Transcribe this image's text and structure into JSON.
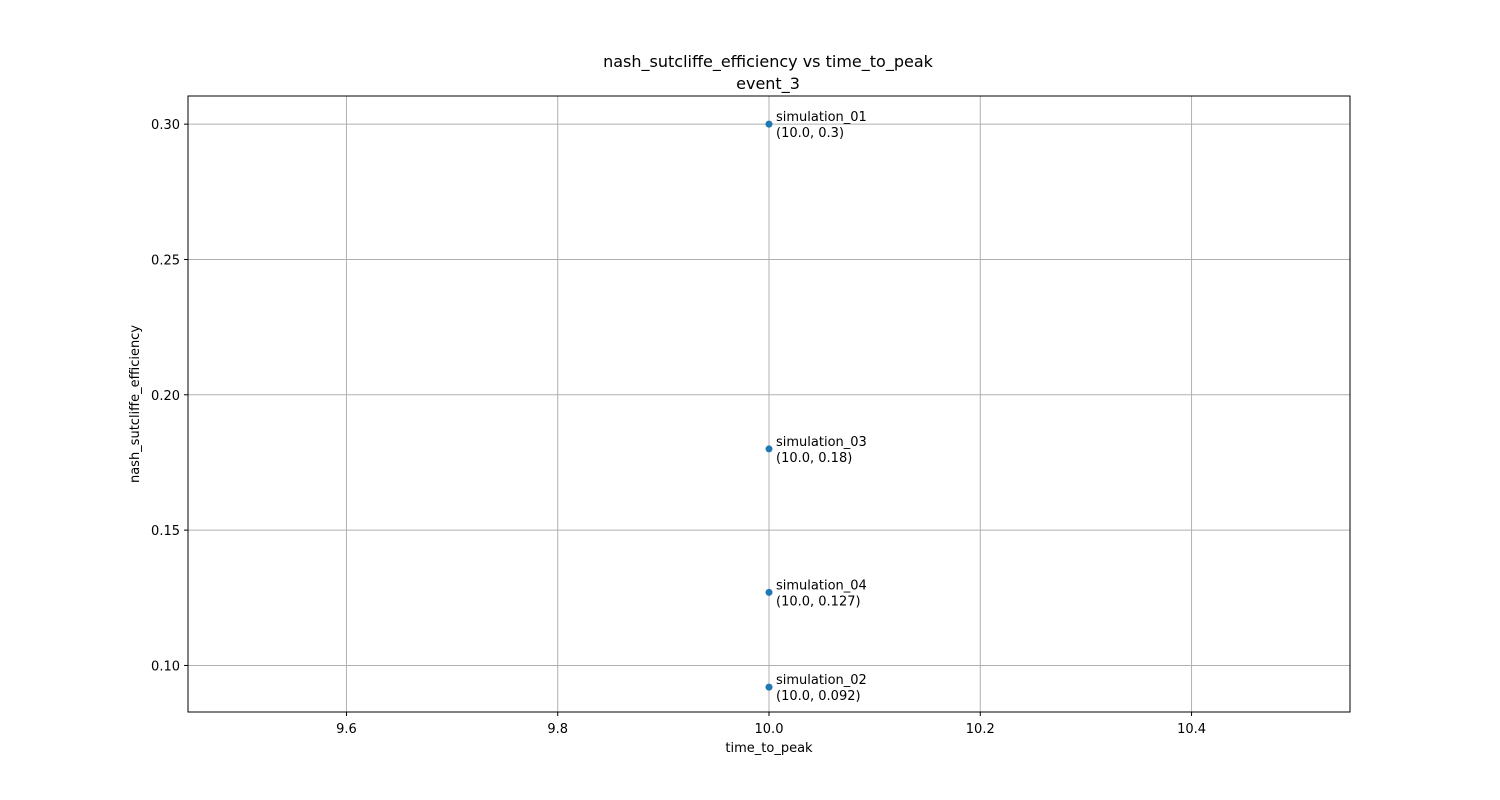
{
  "chart_data": {
    "type": "scatter",
    "title": "nash_sutcliffe_efficiency vs time_to_peak",
    "subtitle": "event_3",
    "xlabel": "time_to_peak",
    "ylabel": "nash_sutcliffe_efficiency",
    "xlim": [
      9.45,
      10.55
    ],
    "ylim": [
      0.0828,
      0.3104
    ],
    "x_ticks": [
      9.6,
      9.8,
      10.0,
      10.2,
      10.4
    ],
    "x_tick_labels": [
      "9.6",
      "9.8",
      "10.0",
      "10.2",
      "10.4"
    ],
    "y_ticks": [
      0.1,
      0.15,
      0.2,
      0.25,
      0.3
    ],
    "y_tick_labels": [
      "0.10",
      "0.15",
      "0.20",
      "0.25",
      "0.30"
    ],
    "grid": true,
    "point_color": "#1f77b4",
    "points": [
      {
        "x": 10.0,
        "y": 0.3,
        "name": "simulation_01",
        "label": "(10.0, 0.3)"
      },
      {
        "x": 10.0,
        "y": 0.18,
        "name": "simulation_03",
        "label": "(10.0, 0.18)"
      },
      {
        "x": 10.0,
        "y": 0.127,
        "name": "simulation_04",
        "label": "(10.0, 0.127)"
      },
      {
        "x": 10.0,
        "y": 0.092,
        "name": "simulation_02",
        "label": "(10.0, 0.092)"
      }
    ]
  }
}
